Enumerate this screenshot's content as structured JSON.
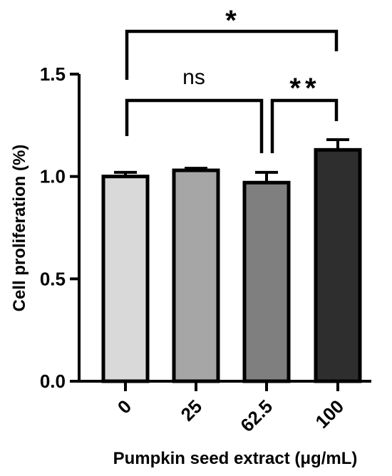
{
  "chart_data": {
    "type": "bar",
    "categories": [
      "0",
      "25",
      "62.5",
      "100"
    ],
    "values": [
      1.0,
      1.03,
      0.97,
      1.13
    ],
    "errors": [
      0.02,
      0.01,
      0.05,
      0.05
    ],
    "colors": [
      "#d9d9d9",
      "#a6a6a6",
      "#7f7f7f",
      "#2e2e2e"
    ],
    "xlabel": "Pumpkin seed extract (μg/mL)",
    "ylabel": "Cell proliferation (%)",
    "ylim": [
      0,
      1.5
    ],
    "yticks": [
      "0.0",
      "0.5",
      "1.0",
      "1.5"
    ],
    "grid": false,
    "annotations": [
      {
        "from": "0",
        "to": "62.5",
        "label": "ns"
      },
      {
        "from": "62.5",
        "to": "100",
        "label": "**"
      },
      {
        "from": "0",
        "to": "100",
        "label": "*"
      }
    ]
  }
}
